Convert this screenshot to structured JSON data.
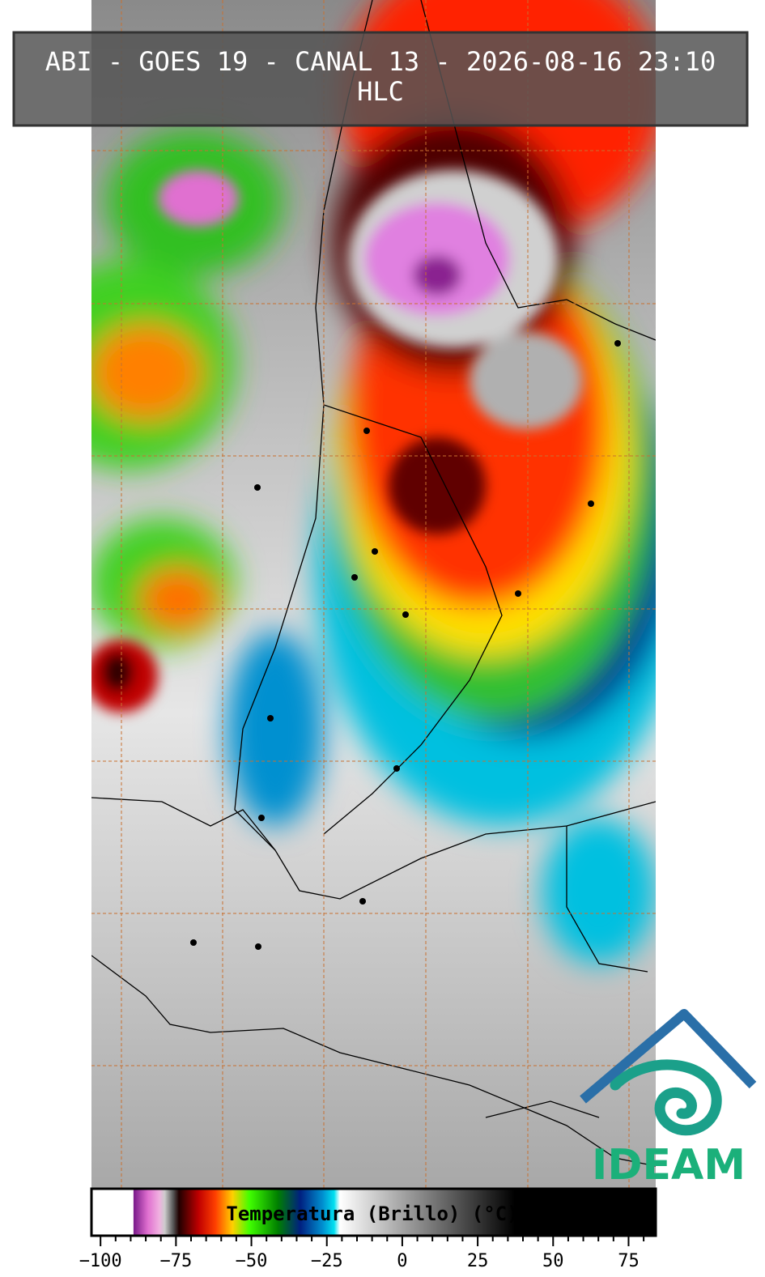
{
  "header": {
    "title": "ABI - GOES 19 - CANAL 13 - 2026-08-16 23:10",
    "subtitle": "HLC"
  },
  "colorbar": {
    "label": "Temperatura (Brillo) (°C)",
    "lim": [
      -103,
      84
    ],
    "ticks": [
      {
        "value": -100,
        "label": "−100"
      },
      {
        "value": -75,
        "label": "−75"
      },
      {
        "value": -50,
        "label": "−50"
      },
      {
        "value": -25,
        "label": "−25"
      },
      0,
      25,
      50,
      75
    ]
  },
  "logo": {
    "text": "IDEAM"
  }
}
